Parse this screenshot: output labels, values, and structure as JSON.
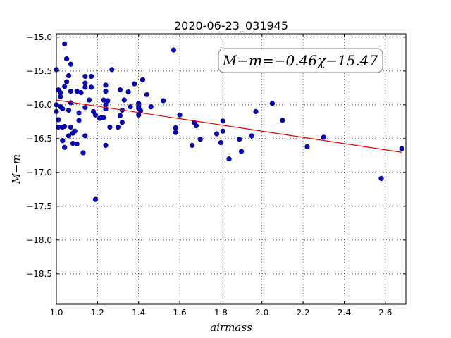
{
  "chart_data": {
    "type": "scatter",
    "title": "2020-06-23_031945",
    "xlabel": "airmass",
    "ylabel": "M−m",
    "xlim": [
      1.0,
      2.7
    ],
    "ylim": [
      -18.95,
      -14.95
    ],
    "y_inverted": true,
    "grid": true,
    "grid_style": "dotted",
    "x_ticks": [
      1.0,
      1.2,
      1.4,
      1.6,
      1.8,
      2.0,
      2.2,
      2.4,
      2.6
    ],
    "x_tick_labels": [
      "1.0",
      "1.2",
      "1.4",
      "1.6",
      "1.8",
      "2.0",
      "2.2",
      "2.4",
      "2.6"
    ],
    "y_ticks": [
      -15.0,
      -15.5,
      -16.0,
      -16.5,
      -17.0,
      -17.5,
      -18.0,
      -18.5
    ],
    "y_tick_labels": [
      "−15.0",
      "−15.5",
      "−16.0",
      "−16.5",
      "−17.0",
      "−17.5",
      "−18.0",
      "−18.5"
    ],
    "point_color": "#0000cc",
    "fit_color": "#dd0000",
    "annotation": "M−m=−0.46χ−15.47",
    "fit": {
      "slope": -0.46,
      "intercept": -15.47,
      "x_range": [
        1.0,
        2.68
      ]
    },
    "points": [
      [
        1.0,
        -15.48
      ],
      [
        1.0,
        -16.0
      ],
      [
        1.0,
        -16.1
      ],
      [
        1.01,
        -15.78
      ],
      [
        1.01,
        -16.22
      ],
      [
        1.01,
        -16.33
      ],
      [
        1.02,
        -15.82
      ],
      [
        1.02,
        -15.88
      ],
      [
        1.02,
        -16.03
      ],
      [
        1.03,
        -16.06
      ],
      [
        1.03,
        -16.33
      ],
      [
        1.03,
        -16.53
      ],
      [
        1.04,
        -15.1
      ],
      [
        1.04,
        -15.73
      ],
      [
        1.04,
        -16.32
      ],
      [
        1.04,
        -16.63
      ],
      [
        1.05,
        -15.32
      ],
      [
        1.05,
        -15.66
      ],
      [
        1.06,
        -15.57
      ],
      [
        1.06,
        -16.08
      ],
      [
        1.06,
        -16.46
      ],
      [
        1.07,
        -15.4
      ],
      [
        1.07,
        -15.8
      ],
      [
        1.07,
        -15.97
      ],
      [
        1.07,
        -16.33
      ],
      [
        1.08,
        -16.42
      ],
      [
        1.08,
        -16.57
      ],
      [
        1.09,
        -16.39
      ],
      [
        1.1,
        -15.8
      ],
      [
        1.1,
        -16.58
      ],
      [
        1.11,
        -16.12
      ],
      [
        1.11,
        -16.23
      ],
      [
        1.12,
        -15.82
      ],
      [
        1.13,
        -16.71
      ],
      [
        1.14,
        -15.58
      ],
      [
        1.14,
        -15.68
      ],
      [
        1.14,
        -15.74
      ],
      [
        1.14,
        -16.04
      ],
      [
        1.14,
        -16.46
      ],
      [
        1.16,
        -15.93
      ],
      [
        1.17,
        -15.58
      ],
      [
        1.17,
        -15.74
      ],
      [
        1.18,
        -16.1
      ],
      [
        1.19,
        -16.15
      ],
      [
        1.19,
        -17.4
      ],
      [
        1.21,
        -16.2
      ],
      [
        1.22,
        -16.19
      ],
      [
        1.23,
        -15.93
      ],
      [
        1.23,
        -16.19
      ],
      [
        1.24,
        -15.71
      ],
      [
        1.24,
        -15.8
      ],
      [
        1.24,
        -16.0
      ],
      [
        1.24,
        -16.06
      ],
      [
        1.24,
        -16.6
      ],
      [
        1.25,
        -15.94
      ],
      [
        1.26,
        -16.33
      ],
      [
        1.27,
        -15.48
      ],
      [
        1.3,
        -16.33
      ],
      [
        1.31,
        -15.78
      ],
      [
        1.31,
        -16.16
      ],
      [
        1.32,
        -16.08
      ],
      [
        1.32,
        -16.26
      ],
      [
        1.33,
        -15.93
      ],
      [
        1.35,
        -15.81
      ],
      [
        1.36,
        -16.03
      ],
      [
        1.38,
        -15.69
      ],
      [
        1.4,
        -15.98
      ],
      [
        1.4,
        -16.02
      ],
      [
        1.4,
        -16.05
      ],
      [
        1.4,
        -16.15
      ],
      [
        1.41,
        -16.09
      ],
      [
        1.42,
        -15.63
      ],
      [
        1.44,
        -15.85
      ],
      [
        1.46,
        -16.03
      ],
      [
        1.52,
        -15.94
      ],
      [
        1.57,
        -15.19
      ],
      [
        1.58,
        -16.34
      ],
      [
        1.58,
        -16.41
      ],
      [
        1.6,
        -16.15
      ],
      [
        1.66,
        -16.6
      ],
      [
        1.67,
        -16.26
      ],
      [
        1.68,
        -16.31
      ],
      [
        1.7,
        -16.51
      ],
      [
        1.78,
        -16.43
      ],
      [
        1.8,
        -16.56
      ],
      [
        1.81,
        -16.24
      ],
      [
        1.81,
        -16.39
      ],
      [
        1.84,
        -16.8
      ],
      [
        1.89,
        -16.51
      ],
      [
        1.9,
        -16.69
      ],
      [
        1.95,
        -16.46
      ],
      [
        1.97,
        -16.1
      ],
      [
        2.05,
        -15.98
      ],
      [
        2.1,
        -16.23
      ],
      [
        2.22,
        -16.62
      ],
      [
        2.3,
        -16.48
      ],
      [
        2.58,
        -17.09
      ],
      [
        2.68,
        -16.65
      ]
    ]
  }
}
